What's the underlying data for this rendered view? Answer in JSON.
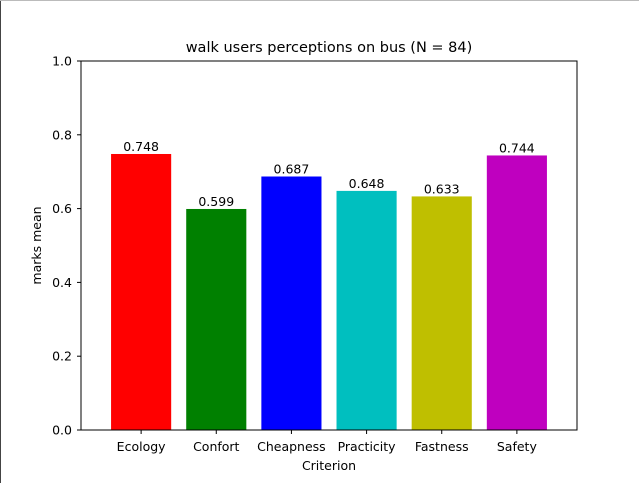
{
  "chart_data": {
    "type": "bar",
    "title": "walk users perceptions on bus (N = 84)",
    "xlabel": "Criterion",
    "ylabel": "marks mean",
    "categories": [
      "Ecology",
      "Confort",
      "Cheapness",
      "Practicity",
      "Fastness",
      "Safety"
    ],
    "values": [
      0.748,
      0.599,
      0.687,
      0.648,
      0.633,
      0.744
    ],
    "data_labels": [
      "0.748",
      "0.599",
      "0.687",
      "0.648",
      "0.633",
      "0.744"
    ],
    "colors": [
      "#ff0000",
      "#008000",
      "#0000ff",
      "#00bfbf",
      "#bfbf00",
      "#bf00bf"
    ],
    "ylim": [
      0,
      1.0
    ],
    "yticks": [
      0.0,
      0.2,
      0.4,
      0.6,
      0.8,
      1.0
    ],
    "ytick_labels": [
      "0.0",
      "0.2",
      "0.4",
      "0.6",
      "0.8",
      "1.0"
    ],
    "grid": false,
    "legend": false
  }
}
